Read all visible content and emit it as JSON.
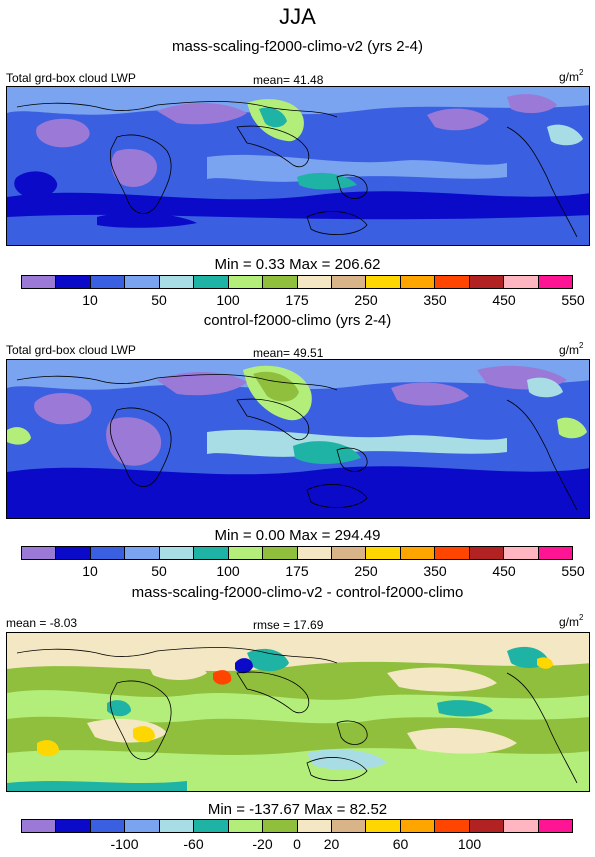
{
  "title": "JJA",
  "colors": {
    "lwp_scale": [
      "#9b79d6",
      "#0a0ac8",
      "#3a5fe0",
      "#7aa3f0",
      "#a9dde6",
      "#1fb3a6",
      "#b4ee7a",
      "#8fbf3c",
      "#f4e7c3",
      "#d9b488",
      "#ffd700",
      "#ffa500",
      "#ff4500",
      "#b22222",
      "#ffb6c1",
      "#ff1493"
    ],
    "diff_scale": [
      "#9b79d6",
      "#0a0ac8",
      "#3a5fe0",
      "#7aa3f0",
      "#a9dde6",
      "#1fb3a6",
      "#b4ee7a",
      "#8fbf3c",
      "#f4e7c3",
      "#d9b488",
      "#ffd700",
      "#ffa500",
      "#ff4500",
      "#b22222",
      "#ffb6c1",
      "#ff1493"
    ]
  },
  "panels": [
    {
      "title": "mass-scaling-f2000-climo-v2 (yrs 2-4)",
      "left_label": "Total grd-box cloud LWP",
      "center_label": "mean=  41.48",
      "units": "g/m",
      "units_exp": "2",
      "minmax": "Min =   0.33 Max = 206.62",
      "ticks": [
        "10",
        "50",
        "100",
        "175",
        "250",
        "350",
        "450",
        "550"
      ]
    },
    {
      "title": "control-f2000-climo (yrs 2-4)",
      "left_label": "Total grd-box cloud LWP",
      "center_label": "mean=  49.51",
      "units": "g/m",
      "units_exp": "2",
      "minmax": "Min =   0.00 Max = 294.49",
      "ticks": [
        "10",
        "50",
        "100",
        "175",
        "250",
        "350",
        "450",
        "550"
      ]
    },
    {
      "title": "mass-scaling-f2000-climo-v2 - control-f2000-climo",
      "left_label": "mean = -8.03",
      "center_label": "rmse =  17.69",
      "units": "g/m",
      "units_exp": "2",
      "minmax": "Min = -137.67 Max =  82.52",
      "ticks": [
        "-100",
        "-60",
        "-20",
        "0",
        "20",
        "60",
        "100"
      ]
    }
  ]
}
